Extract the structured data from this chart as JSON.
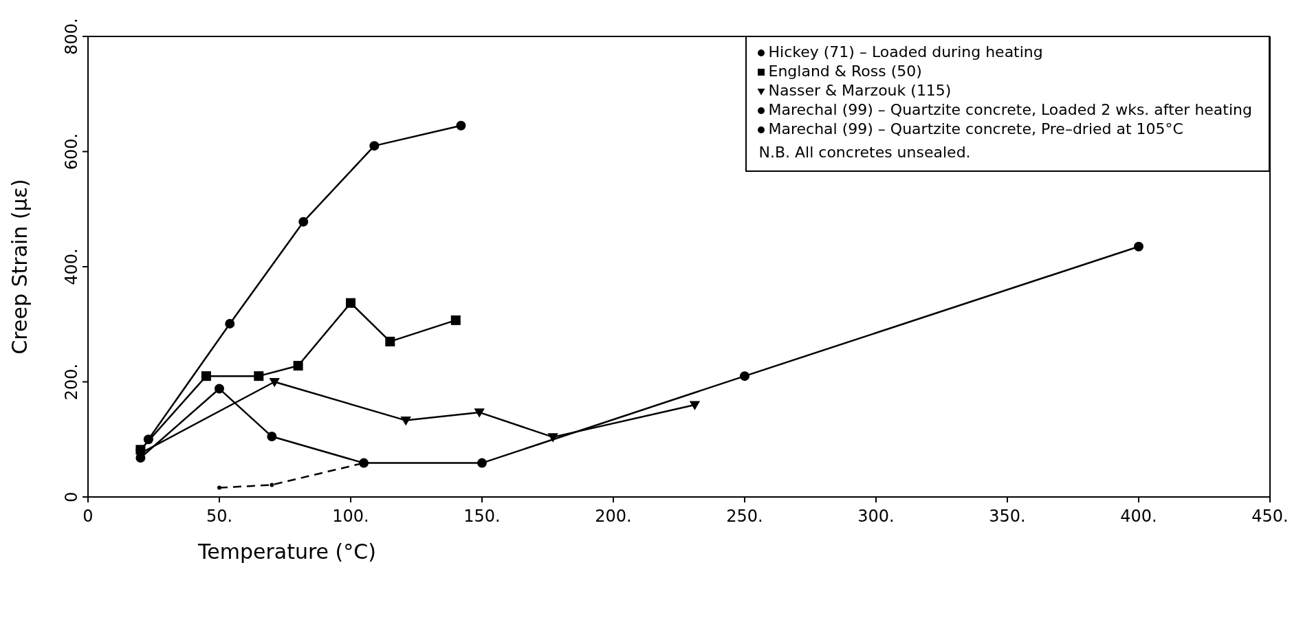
{
  "chart_data": {
    "type": "line",
    "xlabel": "Temperature (°C)",
    "ylabel": "Creep Strain (με)",
    "xlim": [
      0,
      450
    ],
    "ylim": [
      0,
      800
    ],
    "xticks": [
      0,
      {
        "value": 50,
        "label": "50."
      },
      {
        "value": 100,
        "label": "100."
      },
      {
        "value": 150,
        "label": "150."
      },
      {
        "value": 200,
        "label": "200."
      },
      {
        "value": 250,
        "label": "250."
      },
      {
        "value": 300,
        "label": "300."
      },
      {
        "value": 350,
        "label": "350."
      },
      {
        "value": 400,
        "label": "400."
      },
      {
        "value": 450,
        "label": "450."
      }
    ],
    "yticks": [
      0,
      {
        "value": 200,
        "label": "200."
      },
      {
        "value": 400,
        "label": "400."
      },
      {
        "value": 600,
        "label": "600."
      },
      {
        "value": 800,
        "label": "800."
      }
    ],
    "grid": false,
    "legend": "top right",
    "line_style": "solid",
    "annotations": [
      "N.B. All concretes unsealed."
    ],
    "series": [
      {
        "name": "Hickey (71) – Loaded during heating",
        "color": "#000000",
        "marker": "circle",
        "x": [
          23,
          54,
          82,
          109,
          142
        ],
        "values": [
          100,
          301,
          478,
          610,
          645
        ]
      },
      {
        "name": "England & Ross (50)",
        "color": "#000000",
        "marker": "square",
        "x": [
          20,
          45,
          65,
          80,
          100,
          115,
          140
        ],
        "values": [
          82,
          210,
          210,
          228,
          337,
          270,
          307
        ]
      },
      {
        "name": "Nasser & Marzouk (115)",
        "color": "#000000",
        "marker": "triangle",
        "x": [
          20,
          71,
          121,
          149,
          177,
          231
        ],
        "values": [
          76,
          200,
          133,
          147,
          104,
          160
        ]
      },
      {
        "name": "Marechal (99) – Quartzite concrete, Loaded 2 wks. after heating",
        "color": "#000000",
        "marker": "circle",
        "x": [
          20,
          50,
          70,
          105,
          150,
          250,
          400
        ],
        "values": [
          68,
          188,
          105,
          59,
          59,
          210,
          435
        ]
      },
      {
        "name": "Marechal (99) – Quartzite concrete, Pre–dried at 105°C",
        "color": "#000000",
        "marker": "circle",
        "line_style": "dashed",
        "x": [
          50,
          70,
          105
        ],
        "values": [
          16,
          21,
          59
        ]
      }
    ]
  }
}
